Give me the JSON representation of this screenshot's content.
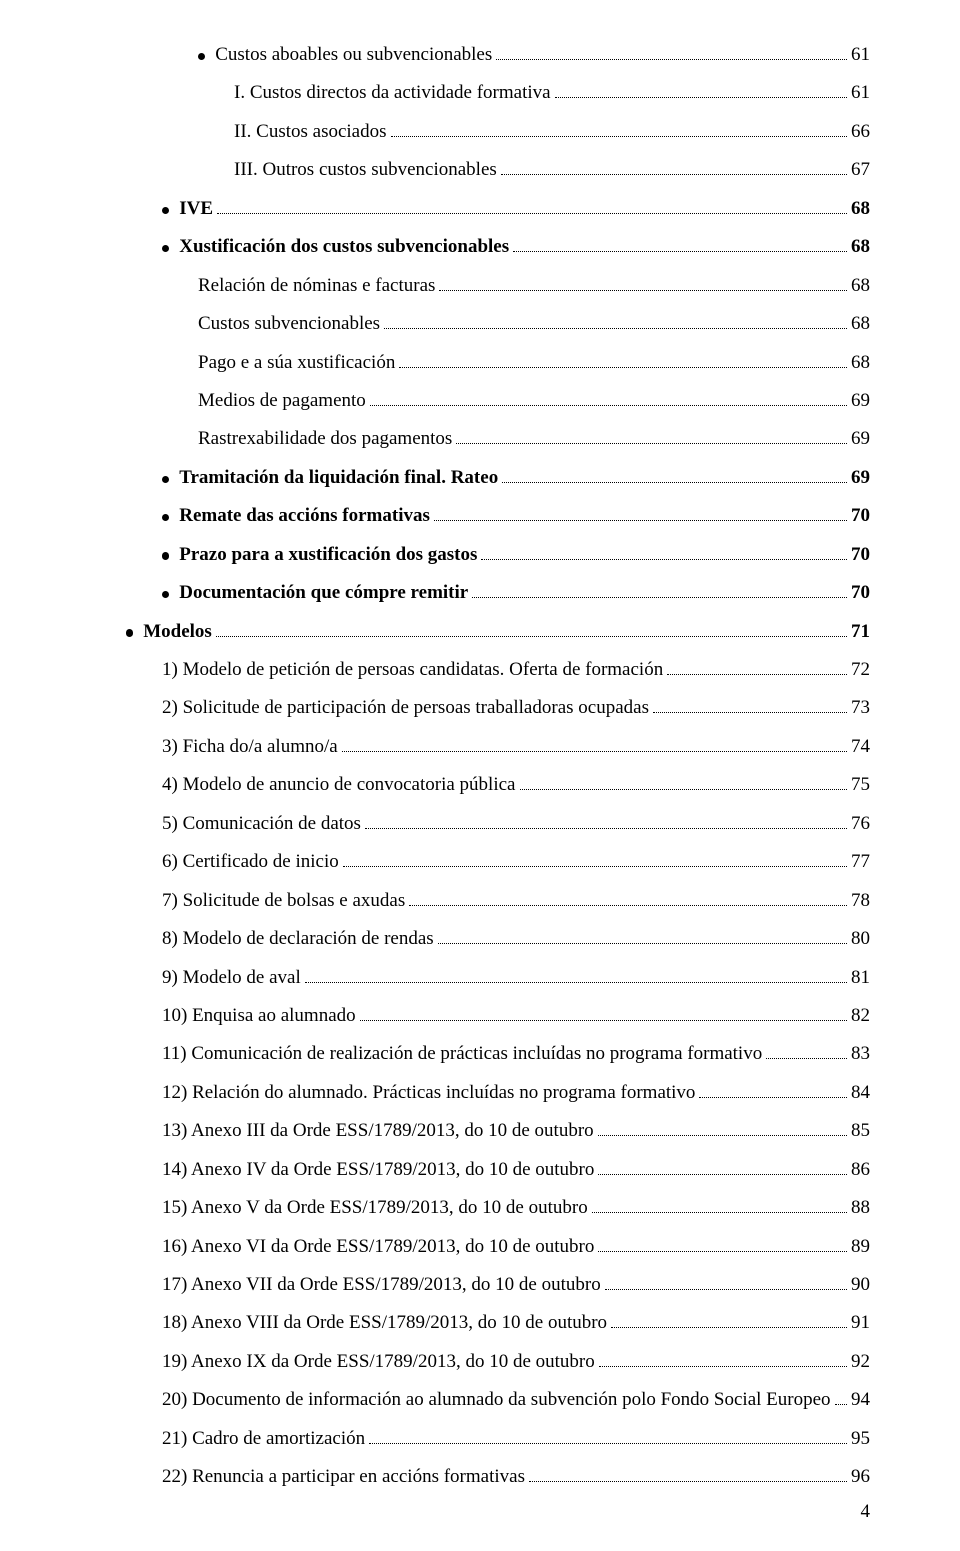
{
  "toc": [
    {
      "indent": 3,
      "bullet": true,
      "bold": false,
      "label": "Custos aboables ou subvencionables",
      "page": "61"
    },
    {
      "indent": 3,
      "bullet": false,
      "bold": false,
      "textIndent": true,
      "label": "I. Custos directos da actividade formativa",
      "page": "61"
    },
    {
      "indent": 3,
      "bullet": false,
      "bold": false,
      "textIndent": true,
      "label": "II. Custos asociados",
      "page": "66"
    },
    {
      "indent": 3,
      "bullet": false,
      "bold": false,
      "textIndent": true,
      "label": "III. Outros custos subvencionables",
      "page": "67"
    },
    {
      "indent": 2,
      "bullet": true,
      "bold": true,
      "label": "IVE",
      "page": "68"
    },
    {
      "indent": 2,
      "bullet": true,
      "bold": true,
      "label": "Xustificación dos custos subvencionables",
      "page": "68"
    },
    {
      "indent": 3,
      "bullet": false,
      "bold": false,
      "textIndent": false,
      "label": "Relación de nóminas e facturas",
      "page": "68"
    },
    {
      "indent": 3,
      "bullet": false,
      "bold": false,
      "textIndent": false,
      "label": "Custos subvencionables",
      "page": "68"
    },
    {
      "indent": 3,
      "bullet": false,
      "bold": false,
      "textIndent": false,
      "label": "Pago e a súa xustificación",
      "page": "68"
    },
    {
      "indent": 3,
      "bullet": false,
      "bold": false,
      "textIndent": false,
      "label": "Medios de pagamento",
      "page": "69"
    },
    {
      "indent": 3,
      "bullet": false,
      "bold": false,
      "textIndent": false,
      "label": "Rastrexabilidade dos pagamentos",
      "page": "69"
    },
    {
      "indent": 2,
      "bullet": true,
      "bold": true,
      "label": "Tramitación da liquidación final. Rateo",
      "page": "69"
    },
    {
      "indent": 2,
      "bullet": true,
      "bold": true,
      "label": "Remate das accións formativas",
      "page": "70"
    },
    {
      "indent": 2,
      "bullet": true,
      "bold": true,
      "label": "Prazo para a xustificación dos gastos",
      "page": "70"
    },
    {
      "indent": 2,
      "bullet": true,
      "bold": true,
      "label": "Documentación que cómpre remitir",
      "page": "70"
    },
    {
      "indent": 1,
      "bullet": true,
      "bold": true,
      "label": "Modelos",
      "page": "71"
    },
    {
      "indent": 1,
      "bullet": false,
      "bold": false,
      "textIndent": true,
      "label": "1) Modelo de petición de persoas candidatas. Oferta de formación",
      "page": "72"
    },
    {
      "indent": 1,
      "bullet": false,
      "bold": false,
      "textIndent": true,
      "label": "2) Solicitude de participación de persoas traballadoras ocupadas",
      "page": "73"
    },
    {
      "indent": 1,
      "bullet": false,
      "bold": false,
      "textIndent": true,
      "label": "3) Ficha do/a alumno/a",
      "page": "74"
    },
    {
      "indent": 1,
      "bullet": false,
      "bold": false,
      "textIndent": true,
      "label": "4) Modelo de anuncio de convocatoria pública",
      "page": "75"
    },
    {
      "indent": 1,
      "bullet": false,
      "bold": false,
      "textIndent": true,
      "label": "5) Comunicación de datos",
      "page": "76"
    },
    {
      "indent": 1,
      "bullet": false,
      "bold": false,
      "textIndent": true,
      "label": "6) Certificado de inicio",
      "page": "77"
    },
    {
      "indent": 1,
      "bullet": false,
      "bold": false,
      "textIndent": true,
      "label": "7) Solicitude de bolsas e axudas",
      "page": "78"
    },
    {
      "indent": 1,
      "bullet": false,
      "bold": false,
      "textIndent": true,
      "label": "8) Modelo de declaración de rendas",
      "page": "80"
    },
    {
      "indent": 1,
      "bullet": false,
      "bold": false,
      "textIndent": true,
      "label": "9) Modelo de aval",
      "page": "81"
    },
    {
      "indent": 1,
      "bullet": false,
      "bold": false,
      "textIndent": true,
      "label": "10) Enquisa ao alumnado",
      "page": "82"
    },
    {
      "indent": 1,
      "bullet": false,
      "bold": false,
      "textIndent": true,
      "label": "11) Comunicación de realización de prácticas incluídas no programa formativo",
      "page": "83"
    },
    {
      "indent": 1,
      "bullet": false,
      "bold": false,
      "textIndent": true,
      "label": "12) Relación do alumnado. Prácticas incluídas no programa formativo",
      "page": "84"
    },
    {
      "indent": 1,
      "bullet": false,
      "bold": false,
      "textIndent": true,
      "label": "13) Anexo III da Orde ESS/1789/2013, do 10 de outubro",
      "page": "85"
    },
    {
      "indent": 1,
      "bullet": false,
      "bold": false,
      "textIndent": true,
      "label": "14) Anexo IV da Orde ESS/1789/2013, do 10 de outubro",
      "page": "86"
    },
    {
      "indent": 1,
      "bullet": false,
      "bold": false,
      "textIndent": true,
      "label": "15) Anexo V da Orde ESS/1789/2013, do 10 de outubro",
      "page": "88"
    },
    {
      "indent": 1,
      "bullet": false,
      "bold": false,
      "textIndent": true,
      "label": "16) Anexo VI da Orde ESS/1789/2013, do 10 de outubro",
      "page": "89"
    },
    {
      "indent": 1,
      "bullet": false,
      "bold": false,
      "textIndent": true,
      "label": "17) Anexo VII da Orde ESS/1789/2013, do 10 de outubro",
      "page": "90"
    },
    {
      "indent": 1,
      "bullet": false,
      "bold": false,
      "textIndent": true,
      "label": "18) Anexo VIII da Orde ESS/1789/2013, do 10 de outubro",
      "page": "91"
    },
    {
      "indent": 1,
      "bullet": false,
      "bold": false,
      "textIndent": true,
      "label": "19) Anexo IX da Orde ESS/1789/2013, do 10 de outubro",
      "page": "92"
    },
    {
      "indent": 1,
      "bullet": false,
      "bold": false,
      "textIndent": true,
      "label": "20) Documento de información ao alumnado da subvención polo Fondo Social Europeo",
      "page": "94"
    },
    {
      "indent": 1,
      "bullet": false,
      "bold": false,
      "textIndent": true,
      "label": "21) Cadro de amortización",
      "page": "95"
    },
    {
      "indent": 1,
      "bullet": false,
      "bold": false,
      "textIndent": true,
      "label": "22) Renuncia a participar en accións formativas",
      "page": "96"
    }
  ],
  "pageNumber": "4"
}
